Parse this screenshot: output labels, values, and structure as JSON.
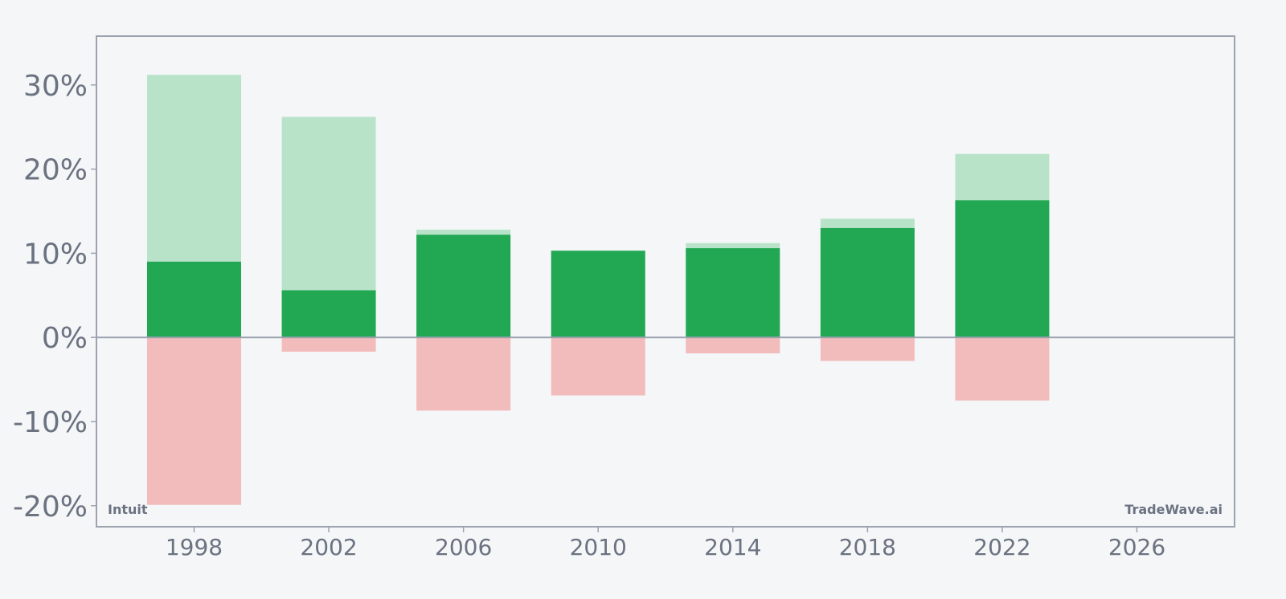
{
  "chart_data": {
    "type": "bar",
    "title": "",
    "xlabel": "",
    "ylabel": "",
    "x_ticks": [
      "1998",
      "2002",
      "2006",
      "2010",
      "2014",
      "2018",
      "2022",
      "2026"
    ],
    "y_ticks": [
      "30%",
      "20%",
      "10%",
      "0%",
      "-10%",
      "-20%"
    ],
    "xlim": [
      1995.1,
      2028.9
    ],
    "ylim": [
      -22.5,
      35.8
    ],
    "grid": false,
    "categories": [
      1998,
      2002,
      2006,
      2010,
      2014,
      2018,
      2022
    ],
    "series": [
      {
        "values": [
          9.0,
          5.6,
          12.2,
          10.3,
          10.6,
          13.0,
          16.3
        ]
      },
      {
        "values": [
          31.2,
          26.2,
          12.8,
          10.3,
          11.2,
          14.1,
          21.8
        ]
      },
      {
        "values": [
          -19.9,
          -1.7,
          -8.7,
          -6.9,
          -1.9,
          -2.8,
          -7.5
        ]
      }
    ],
    "colors": {
      "net": "#22a853",
      "positive_range": "#b8e3c9",
      "negative_range": "#f2bcbc",
      "axis": "#9ca3af",
      "text": "#6b7280"
    }
  },
  "watermark_left": "Intuit",
  "watermark_right": "TradeWave.ai"
}
